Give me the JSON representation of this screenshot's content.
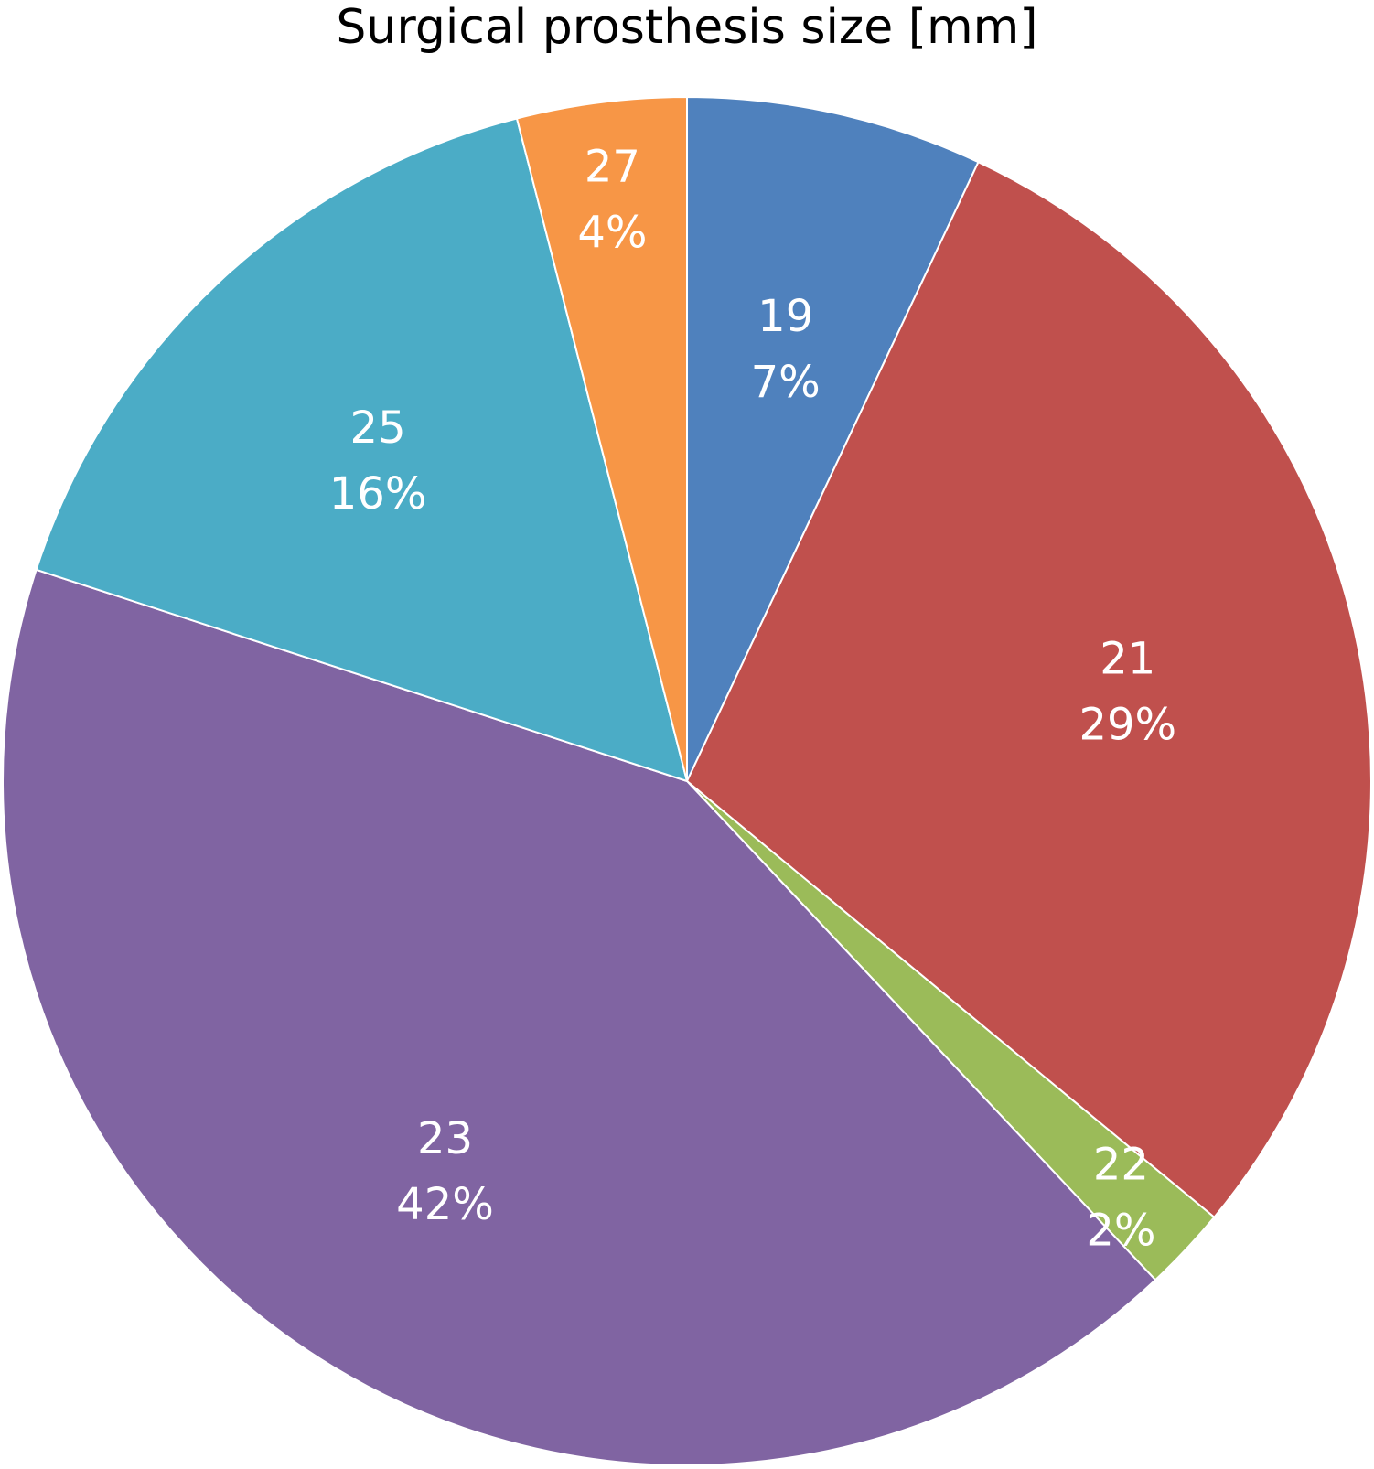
{
  "chart_data": {
    "type": "pie",
    "title": "Surgical prosthesis size [mm]",
    "categories": [
      "19",
      "21",
      "22",
      "23",
      "25",
      "27"
    ],
    "values": [
      7,
      29,
      2,
      42,
      16,
      4
    ],
    "value_labels": [
      "7%",
      "29%",
      "2%",
      "42%",
      "16%",
      "4%"
    ],
    "colors": [
      "#4F81BD",
      "#C0504D",
      "#9BBB59",
      "#8064A2",
      "#4BACC6",
      "#F79646"
    ],
    "start_angle": "top",
    "direction": "clockwise",
    "legend": "none"
  }
}
